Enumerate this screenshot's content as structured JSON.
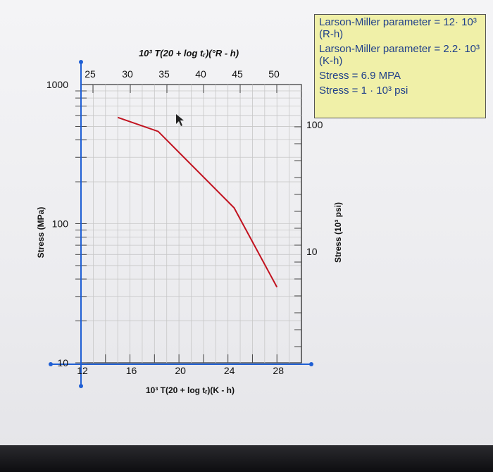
{
  "chart_data": {
    "type": "line",
    "title": "",
    "top_axis_label": "10³ T(20 + log tᵣ)(°R - h)",
    "top_ticks": [
      "25",
      "30",
      "35",
      "40",
      "45",
      "50"
    ],
    "bottom_axis_label": "10³ T(20 + log tᵣ)(K - h)",
    "bottom_ticks": [
      "12",
      "16",
      "20",
      "24",
      "28"
    ],
    "left_axis_label": "Stress (MPa)",
    "left_ticks": [
      "1000",
      "100",
      "10"
    ],
    "right_axis_label": "Stress (10³ psi)",
    "right_ticks": [
      "100",
      "10"
    ],
    "xlim": [
      12,
      30
    ],
    "ylim": [
      10,
      1000
    ],
    "yscale": "log",
    "grid": true,
    "series": [
      {
        "color": "#c1121f",
        "x": [
          15,
          18.3,
          24.5,
          28
        ],
        "y": [
          580,
          460,
          130,
          35
        ]
      }
    ]
  },
  "info_box": {
    "lines": [
      "Larson-Miller parameter = 12· 10³ (R-h)",
      "Larson-Miller parameter = 2.2· 10³ (K-h)",
      "Stress = 6.9 MPA",
      "Stress = 1 · 10³ psi"
    ]
  }
}
